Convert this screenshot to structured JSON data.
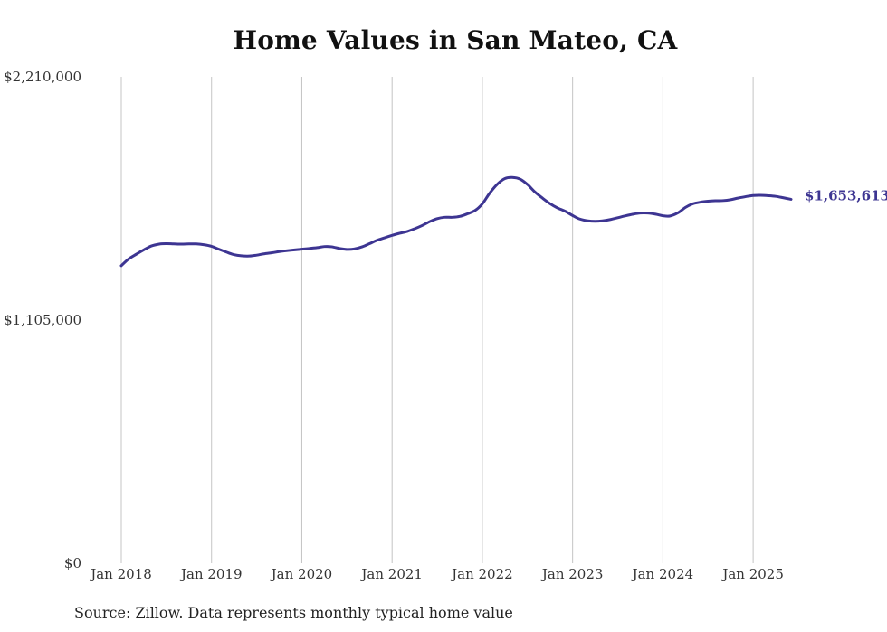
{
  "title": "Home Values in San Mateo, CA",
  "source": "Source: Zillow. Data represents monthly typical home value",
  "colors": {
    "line": "#3d3592",
    "grid": "#c4c4c4",
    "text": "#333333",
    "title": "#111111"
  },
  "chart_data": {
    "type": "line",
    "title": "Home Values in San Mateo, CA",
    "xlabel": "",
    "ylabel": "",
    "y_ticks": [
      {
        "value": 0,
        "label": "$0"
      },
      {
        "value": 1105000,
        "label": "$1,105,000"
      },
      {
        "value": 2210000,
        "label": "$2,210,000"
      }
    ],
    "x_ticks": [
      {
        "value": 2018,
        "label": "Jan 2018"
      },
      {
        "value": 2019,
        "label": "Jan 2019"
      },
      {
        "value": 2020,
        "label": "Jan 2020"
      },
      {
        "value": 2021,
        "label": "Jan 2021"
      },
      {
        "value": 2022,
        "label": "Jan 2022"
      },
      {
        "value": 2023,
        "label": "Jan 2023"
      },
      {
        "value": 2024,
        "label": "Jan 2024"
      },
      {
        "value": 2025,
        "label": "Jan 2025"
      }
    ],
    "xlim": [
      2018,
      2025.42
    ],
    "ylim": [
      0,
      2210000
    ],
    "grid": {
      "vertical": true,
      "horizontal": false
    },
    "end_label": "$1,653,613",
    "series": [
      {
        "values": [
          [
            2018.0,
            1352000
          ],
          [
            2018.08,
            1382000
          ],
          [
            2018.17,
            1405000
          ],
          [
            2018.25,
            1424000
          ],
          [
            2018.33,
            1441000
          ],
          [
            2018.42,
            1450000
          ],
          [
            2018.5,
            1452000
          ],
          [
            2018.58,
            1451000
          ],
          [
            2018.67,
            1450000
          ],
          [
            2018.75,
            1451000
          ],
          [
            2018.83,
            1451000
          ],
          [
            2018.92,
            1447000
          ],
          [
            2019.0,
            1440000
          ],
          [
            2019.08,
            1427000
          ],
          [
            2019.17,
            1413000
          ],
          [
            2019.25,
            1402000
          ],
          [
            2019.33,
            1397000
          ],
          [
            2019.42,
            1396000
          ],
          [
            2019.5,
            1400000
          ],
          [
            2019.58,
            1406000
          ],
          [
            2019.67,
            1411000
          ],
          [
            2019.75,
            1416000
          ],
          [
            2019.83,
            1420000
          ],
          [
            2019.92,
            1424000
          ],
          [
            2020.0,
            1427000
          ],
          [
            2020.08,
            1430000
          ],
          [
            2020.17,
            1434000
          ],
          [
            2020.25,
            1439000
          ],
          [
            2020.33,
            1438000
          ],
          [
            2020.42,
            1430000
          ],
          [
            2020.5,
            1426000
          ],
          [
            2020.58,
            1428000
          ],
          [
            2020.67,
            1438000
          ],
          [
            2020.75,
            1452000
          ],
          [
            2020.83,
            1467000
          ],
          [
            2020.92,
            1479000
          ],
          [
            2021.0,
            1490000
          ],
          [
            2021.08,
            1499000
          ],
          [
            2021.17,
            1508000
          ],
          [
            2021.25,
            1520000
          ],
          [
            2021.33,
            1534000
          ],
          [
            2021.42,
            1553000
          ],
          [
            2021.5,
            1566000
          ],
          [
            2021.58,
            1572000
          ],
          [
            2021.67,
            1572000
          ],
          [
            2021.75,
            1576000
          ],
          [
            2021.83,
            1587000
          ],
          [
            2021.92,
            1603000
          ],
          [
            2022.0,
            1633000
          ],
          [
            2022.08,
            1681000
          ],
          [
            2022.17,
            1724000
          ],
          [
            2022.25,
            1748000
          ],
          [
            2022.33,
            1753000
          ],
          [
            2022.42,
            1745000
          ],
          [
            2022.5,
            1721000
          ],
          [
            2022.58,
            1688000
          ],
          [
            2022.67,
            1658000
          ],
          [
            2022.75,
            1634000
          ],
          [
            2022.83,
            1615000
          ],
          [
            2022.92,
            1599000
          ],
          [
            2023.0,
            1580000
          ],
          [
            2023.08,
            1564000
          ],
          [
            2023.17,
            1556000
          ],
          [
            2023.25,
            1554000
          ],
          [
            2023.33,
            1556000
          ],
          [
            2023.42,
            1562000
          ],
          [
            2023.5,
            1570000
          ],
          [
            2023.58,
            1578000
          ],
          [
            2023.67,
            1586000
          ],
          [
            2023.75,
            1591000
          ],
          [
            2023.83,
            1591000
          ],
          [
            2023.92,
            1586000
          ],
          [
            2024.0,
            1579000
          ],
          [
            2024.08,
            1578000
          ],
          [
            2024.17,
            1593000
          ],
          [
            2024.25,
            1617000
          ],
          [
            2024.33,
            1633000
          ],
          [
            2024.42,
            1641000
          ],
          [
            2024.5,
            1645000
          ],
          [
            2024.58,
            1647000
          ],
          [
            2024.67,
            1648000
          ],
          [
            2024.75,
            1652000
          ],
          [
            2024.83,
            1659000
          ],
          [
            2024.92,
            1666000
          ],
          [
            2025.0,
            1671000
          ],
          [
            2025.08,
            1672000
          ],
          [
            2025.17,
            1670000
          ],
          [
            2025.25,
            1667000
          ],
          [
            2025.33,
            1661000
          ],
          [
            2025.42,
            1653613
          ]
        ]
      }
    ]
  }
}
